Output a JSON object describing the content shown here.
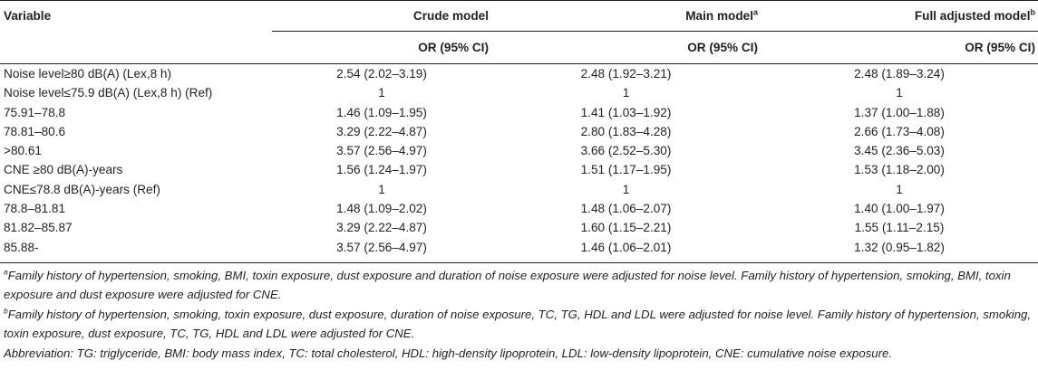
{
  "table": {
    "headers": {
      "variable": "Variable",
      "crude": "Crude model",
      "main": "Main model",
      "main_sup": "a",
      "full": "Full adjusted model",
      "full_sup": "b",
      "sub_crude": "OR (95% CI)",
      "sub_main": "OR (95% CI)",
      "sub_full": "OR (95% CI)"
    },
    "rows": [
      {
        "variable": "Noise level≥80 dB(A) (Lex,8 h)",
        "crude": "2.54 (2.02–3.19)",
        "main": "2.48 (1.92–3.21)",
        "full": "2.48 (1.89–3.24)"
      },
      {
        "variable": "Noise level≤75.9 dB(A) (Lex,8 h) (Ref)",
        "crude": "1",
        "main": "1",
        "full": "1"
      },
      {
        "variable": "75.91–78.8",
        "crude": "1.46 (1.09–1.95)",
        "main": "1.41 (1.03–1.92)",
        "full": "1.37 (1.00–1.88)"
      },
      {
        "variable": "78.81–80.6",
        "crude": "3.29 (2.22–4.87)",
        "main": "2.80 (1.83–4.28)",
        "full": "2.66 (1.73–4.08)"
      },
      {
        "variable": ">80.61",
        "crude": "3.57 (2.56–4.97)",
        "main": "3.66 (2.52–5.30)",
        "full": "3.45 (2.36–5.03)"
      },
      {
        "variable": "CNE ≥80 dB(A)-years",
        "crude": "1.56 (1.24–1.97)",
        "main": "1.51 (1.17–1.95)",
        "full": "1.53 (1.18–2.00)"
      },
      {
        "variable": "CNE≤78.8 dB(A)-years (Ref)",
        "crude": "1",
        "main": "1",
        "full": "1"
      },
      {
        "variable": "78.8–81.81",
        "crude": "1.48 (1.09–2.02)",
        "main": "1.48 (1.06–2.07)",
        "full": "1.40 (1.00–1.97)"
      },
      {
        "variable": "81.82–85.87",
        "crude": "3.29 (2.22–4.87)",
        "main": "1.60 (1.15–2.21)",
        "full": "1.55 (1.11–2.15)"
      },
      {
        "variable": "85.88-",
        "crude": "3.57 (2.56–4.97)",
        "main": "1.46 (1.06–2.01)",
        "full": "1.32 (0.95–1.82)"
      }
    ]
  },
  "footnotes": {
    "a_mark": "a",
    "a_text": "Family history of hypertension, smoking, BMI, toxin exposure, dust exposure and duration of noise exposure were adjusted for noise level. Family history of hypertension, smoking, BMI, toxin exposure and dust exposure were adjusted for CNE.",
    "b_mark": "b",
    "b_text": "Family history of hypertension, smoking, toxin exposure, dust exposure, duration of noise exposure, TC, TG, HDL and LDL were adjusted for noise level. Family history of hypertension, smoking, toxin exposure, dust exposure, TC, TG, HDL and LDL were adjusted for CNE.",
    "abbreviation": "Abbreviation: TG: triglyceride, BMI: body mass index, TC: total cholesterol, HDL: high-density lipoprotein, LDL: low-density lipoprotein, CNE: cumulative noise exposure."
  }
}
